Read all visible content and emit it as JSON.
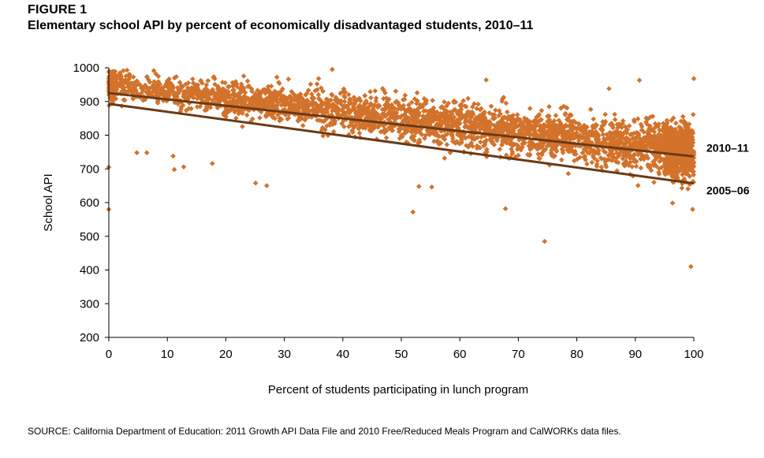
{
  "figure": {
    "label": "FIGURE 1",
    "title": "Elementary school API by percent of economically disadvantaged students, 2010–11"
  },
  "chart_data": {
    "type": "scatter",
    "xlabel": "Percent of students participating in lunch program",
    "ylabel": "School API",
    "xlim": [
      0,
      100
    ],
    "ylim": [
      200,
      1000
    ],
    "xticks": [
      "0",
      "10",
      "20",
      "30",
      "40",
      "50",
      "60",
      "70",
      "80",
      "90",
      "100"
    ],
    "yticks": [
      "200",
      "300",
      "400",
      "500",
      "600",
      "700",
      "800",
      "900",
      "1000"
    ],
    "grid": false,
    "point_color": "#D2722B",
    "line_color": "#6B3A16",
    "cloud_summary": {
      "center_line": {
        "x": [
          0,
          100
        ],
        "y": [
          950,
          750
        ]
      },
      "spread_sd": [
        20,
        40
      ]
    },
    "outliers": [
      {
        "x": 0,
        "y": 580
      },
      {
        "x": 0,
        "y": 705
      },
      {
        "x": 4.8,
        "y": 748
      },
      {
        "x": 6.5,
        "y": 748
      },
      {
        "x": 11,
        "y": 738
      },
      {
        "x": 11.2,
        "y": 698
      },
      {
        "x": 12.8,
        "y": 706
      },
      {
        "x": 17.7,
        "y": 716
      },
      {
        "x": 25.1,
        "y": 658
      },
      {
        "x": 27,
        "y": 650
      },
      {
        "x": 38.2,
        "y": 995
      },
      {
        "x": 52,
        "y": 572
      },
      {
        "x": 53,
        "y": 648
      },
      {
        "x": 55.2,
        "y": 646
      },
      {
        "x": 64.5,
        "y": 964
      },
      {
        "x": 67.8,
        "y": 582
      },
      {
        "x": 74.5,
        "y": 485
      },
      {
        "x": 85.5,
        "y": 938
      },
      {
        "x": 90.7,
        "y": 963
      },
      {
        "x": 99.5,
        "y": 410
      },
      {
        "x": 100,
        "y": 968
      },
      {
        "x": 99.8,
        "y": 580
      }
    ],
    "series": [
      {
        "name": "2010–11",
        "type": "trendline",
        "x": [
          0,
          100
        ],
        "y": [
          925,
          737
        ]
      },
      {
        "name": "2005–06",
        "type": "trendline",
        "x": [
          0,
          100
        ],
        "y": [
          893,
          657
        ]
      }
    ]
  },
  "source": "SOURCE: California Department of Education: 2011 Growth API Data File and 2010 Free/Reduced Meals Program and CalWORKs data files."
}
